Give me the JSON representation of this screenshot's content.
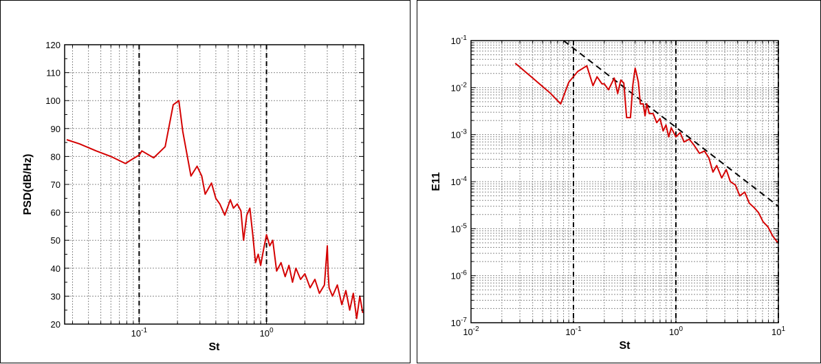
{
  "chart_data": [
    {
      "type": "line",
      "xlabel": "St",
      "ylabel": "PSD(dB/Hz)",
      "xscale": "log",
      "xlim": [
        0.026,
        5.8
      ],
      "ylim": [
        20,
        120
      ],
      "x_tick_labels": [
        {
          "value": 0.1,
          "base": "10",
          "exp": "-1"
        },
        {
          "value": 1,
          "base": "10",
          "exp": "0"
        }
      ],
      "y_ticks": [
        20,
        30,
        40,
        50,
        60,
        70,
        80,
        90,
        100,
        110,
        120
      ],
      "grid": true,
      "vertical_dashed_lines": [
        0.1,
        1
      ],
      "series": [
        {
          "color": "#d40000",
          "x": [
            0.027,
            0.034,
            0.046,
            0.06,
            0.078,
            0.088,
            0.1,
            0.105,
            0.13,
            0.16,
            0.185,
            0.205,
            0.22,
            0.255,
            0.285,
            0.31,
            0.33,
            0.37,
            0.4,
            0.43,
            0.47,
            0.52,
            0.55,
            0.59,
            0.63,
            0.66,
            0.7,
            0.74,
            0.78,
            0.82,
            0.86,
            0.9,
            0.95,
            1.0,
            1.06,
            1.12,
            1.2,
            1.3,
            1.4,
            1.5,
            1.6,
            1.7,
            1.85,
            2.0,
            2.2,
            2.4,
            2.6,
            2.85,
            3.0,
            3.05,
            3.1,
            3.3,
            3.6,
            3.9,
            4.2,
            4.5,
            4.8,
            5.1,
            5.4,
            5.7
          ],
          "y": [
            86,
            84.5,
            82,
            80,
            77.5,
            79,
            80.5,
            82,
            79.5,
            83.5,
            98.5,
            100,
            89,
            73,
            76.5,
            73,
            66.5,
            70.5,
            65,
            63,
            59,
            64.5,
            61.5,
            63,
            60.5,
            50,
            59,
            61.5,
            52,
            42,
            45,
            41,
            47,
            52,
            48,
            50,
            39,
            42,
            37,
            41,
            35,
            40,
            36,
            38,
            33,
            36,
            31,
            34,
            48,
            38,
            33,
            30,
            34,
            27,
            32,
            25,
            31,
            22,
            30,
            24
          ]
        }
      ]
    },
    {
      "type": "line",
      "xlabel": "St",
      "ylabel": "E11",
      "xscale": "log",
      "yscale": "log",
      "xlim": [
        0.01,
        10
      ],
      "ylim": [
        1e-07,
        0.1
      ],
      "x_tick_labels": [
        {
          "value": 0.01,
          "base": "10",
          "exp": "-2"
        },
        {
          "value": 0.1,
          "base": "10",
          "exp": "-1"
        },
        {
          "value": 1,
          "base": "10",
          "exp": "0"
        },
        {
          "value": 10,
          "base": "10",
          "exp": "1"
        }
      ],
      "y_tick_labels": [
        {
          "value": 1e-07,
          "base": "10",
          "exp": "-7"
        },
        {
          "value": 1e-06,
          "base": "10",
          "exp": "-6"
        },
        {
          "value": 1e-05,
          "base": "10",
          "exp": "-5"
        },
        {
          "value": 0.0001,
          "base": "10",
          "exp": "-4"
        },
        {
          "value": 0.001,
          "base": "10",
          "exp": "-3"
        },
        {
          "value": 0.01,
          "base": "10",
          "exp": "-2"
        },
        {
          "value": 0.1,
          "base": "10",
          "exp": "-1"
        }
      ],
      "grid": true,
      "vertical_dashed_lines": [
        0.1,
        1,
        10
      ],
      "reference_line": {
        "style": "dashed",
        "x": [
          0.08,
          10
        ],
        "y": [
          0.1,
          3e-05
        ]
      },
      "series": [
        {
          "color": "#d40000",
          "x": [
            0.027,
            0.04,
            0.06,
            0.075,
            0.09,
            0.11,
            0.135,
            0.155,
            0.17,
            0.19,
            0.2,
            0.22,
            0.25,
            0.27,
            0.29,
            0.31,
            0.33,
            0.36,
            0.38,
            0.4,
            0.41,
            0.43,
            0.45,
            0.48,
            0.5,
            0.52,
            0.55,
            0.6,
            0.65,
            0.7,
            0.75,
            0.8,
            0.85,
            0.9,
            1.0,
            1.1,
            1.2,
            1.35,
            1.5,
            1.7,
            1.9,
            2.1,
            2.3,
            2.5,
            2.8,
            3.1,
            3.4,
            3.8,
            4.2,
            4.7,
            5.2,
            5.8,
            6.4,
            7.1,
            7.9,
            8.8,
            9.9
          ],
          "y": [
            0.033,
            0.016,
            0.0075,
            0.0045,
            0.013,
            0.022,
            0.029,
            0.011,
            0.017,
            0.012,
            0.012,
            0.009,
            0.016,
            0.0075,
            0.0145,
            0.0125,
            0.0023,
            0.0023,
            0.0115,
            0.026,
            0.021,
            0.013,
            0.0045,
            0.0045,
            0.0025,
            0.0045,
            0.0028,
            0.0028,
            0.0018,
            0.0022,
            0.0012,
            0.0016,
            0.0009,
            0.0014,
            0.0009,
            0.0011,
            0.0007,
            0.0008,
            0.0006,
            0.0004,
            0.00045,
            0.00032,
            0.00016,
            0.00022,
            0.00012,
            0.00018,
            0.0001,
            8.5e-05,
            5e-05,
            6e-05,
            3.5e-05,
            2.8e-05,
            2.2e-05,
            1.4e-05,
            1.1e-05,
            7e-06,
            5e-06
          ]
        }
      ]
    }
  ]
}
